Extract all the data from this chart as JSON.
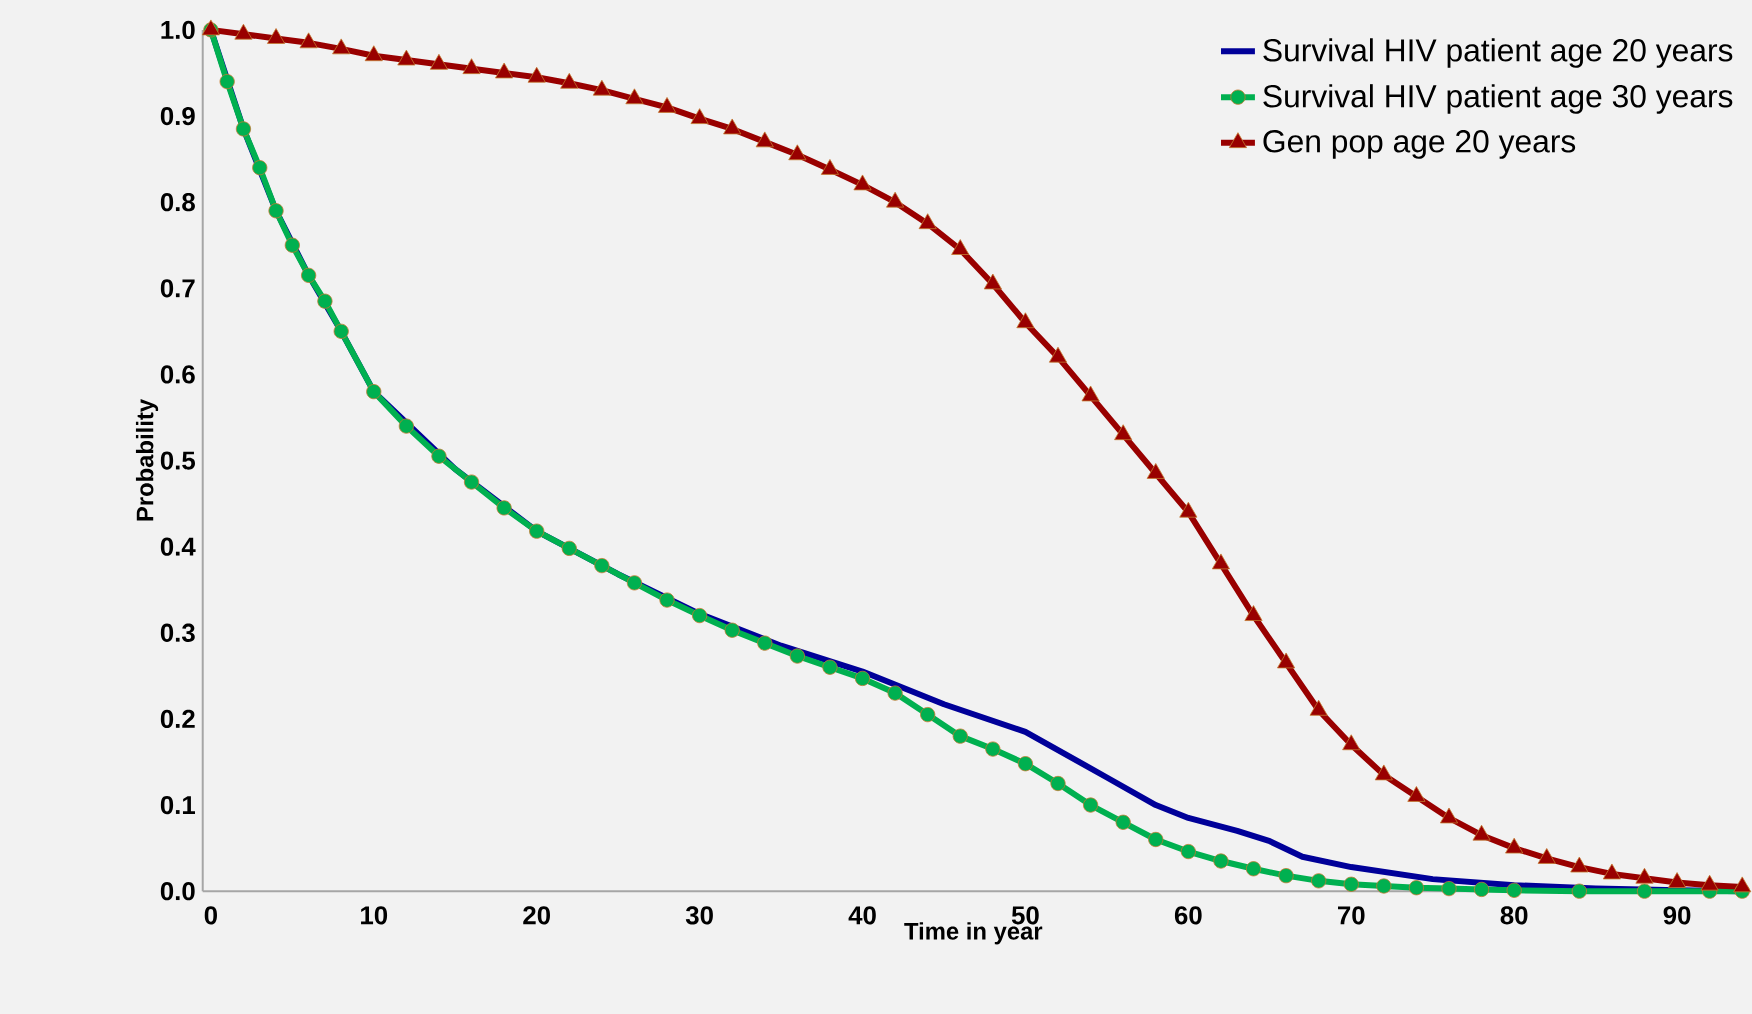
{
  "chart_data": {
    "type": "line",
    "xlabel": "Time in year",
    "ylabel": "Probability",
    "xlim": [
      -0.5,
      94.1
    ],
    "ylim": [
      0,
      1.0
    ],
    "xticks": [
      0,
      10,
      20,
      30,
      40,
      50,
      60,
      70,
      80,
      90
    ],
    "yticks": [
      {
        "value": 0,
        "label": "0.0"
      },
      {
        "value": 0.1,
        "label": "0.1"
      },
      {
        "value": 0.2,
        "label": "0.2"
      },
      {
        "value": 0.3,
        "label": "0.3"
      },
      {
        "value": 0.4,
        "label": "0.4"
      },
      {
        "value": 0.5,
        "label": "0.5"
      },
      {
        "value": 0.6,
        "label": "0.6"
      },
      {
        "value": 0.7,
        "label": "0.7"
      },
      {
        "value": 0.8,
        "label": "0.8"
      },
      {
        "value": 0.9,
        "label": "0.9"
      },
      {
        "value": 1.0,
        "label": "1.0"
      }
    ],
    "legend": "top right",
    "series": [
      {
        "name": "Survival HIV patient age 20 years",
        "color": "#000099",
        "marker": "none",
        "x": [
          0,
          2,
          4,
          6,
          8,
          10,
          15,
          20,
          25,
          30,
          35,
          40,
          45,
          50,
          55,
          58,
          60,
          63,
          65,
          67,
          70,
          75,
          80,
          85,
          90,
          94
        ],
        "values": [
          1.0,
          0.885,
          0.79,
          0.715,
          0.65,
          0.58,
          0.49,
          0.418,
          0.368,
          0.322,
          0.285,
          0.255,
          0.217,
          0.185,
          0.132,
          0.1,
          0.085,
          0.07,
          0.058,
          0.04,
          0.028,
          0.014,
          0.007,
          0.003,
          0.001,
          0
        ]
      },
      {
        "name": "Survival HIV patient age 30 years",
        "color": "#00b050",
        "marker": "circle",
        "x": [
          0,
          1,
          2,
          3,
          4,
          5,
          6,
          7,
          8,
          10,
          12,
          14,
          16,
          18,
          20,
          22,
          24,
          26,
          28,
          30,
          32,
          34,
          36,
          38,
          40,
          42,
          44,
          46,
          48,
          50,
          52,
          54,
          56,
          58,
          60,
          62,
          64,
          66,
          68,
          70,
          72,
          74,
          76,
          78,
          80,
          84,
          88,
          92,
          94
        ],
        "values": [
          1.0,
          0.94,
          0.885,
          0.84,
          0.79,
          0.75,
          0.715,
          0.685,
          0.65,
          0.58,
          0.54,
          0.505,
          0.475,
          0.445,
          0.418,
          0.398,
          0.378,
          0.358,
          0.338,
          0.32,
          0.303,
          0.288,
          0.273,
          0.26,
          0.247,
          0.23,
          0.205,
          0.18,
          0.165,
          0.148,
          0.125,
          0.1,
          0.08,
          0.06,
          0.046,
          0.035,
          0.026,
          0.018,
          0.012,
          0.008,
          0.006,
          0.004,
          0.003,
          0.002,
          0.001,
          0,
          0,
          0,
          0
        ]
      },
      {
        "name": "Gen pop age 20 years",
        "color": "#990000",
        "marker": "triangle",
        "x": [
          0,
          2,
          4,
          6,
          8,
          10,
          12,
          14,
          16,
          18,
          20,
          22,
          24,
          26,
          28,
          30,
          32,
          34,
          36,
          38,
          40,
          42,
          44,
          46,
          48,
          50,
          52,
          54,
          56,
          58,
          60,
          62,
          64,
          66,
          68,
          70,
          72,
          74,
          76,
          78,
          80,
          82,
          84,
          86,
          88,
          90,
          92,
          94
        ],
        "values": [
          1.0,
          0.995,
          0.99,
          0.985,
          0.978,
          0.97,
          0.965,
          0.96,
          0.955,
          0.95,
          0.945,
          0.938,
          0.93,
          0.92,
          0.91,
          0.897,
          0.885,
          0.87,
          0.855,
          0.838,
          0.82,
          0.8,
          0.775,
          0.745,
          0.705,
          0.66,
          0.62,
          0.575,
          0.53,
          0.485,
          0.44,
          0.38,
          0.32,
          0.265,
          0.21,
          0.17,
          0.135,
          0.11,
          0.085,
          0.065,
          0.05,
          0.038,
          0.028,
          0.02,
          0.015,
          0.01,
          0.007,
          0.005
        ]
      }
    ]
  }
}
